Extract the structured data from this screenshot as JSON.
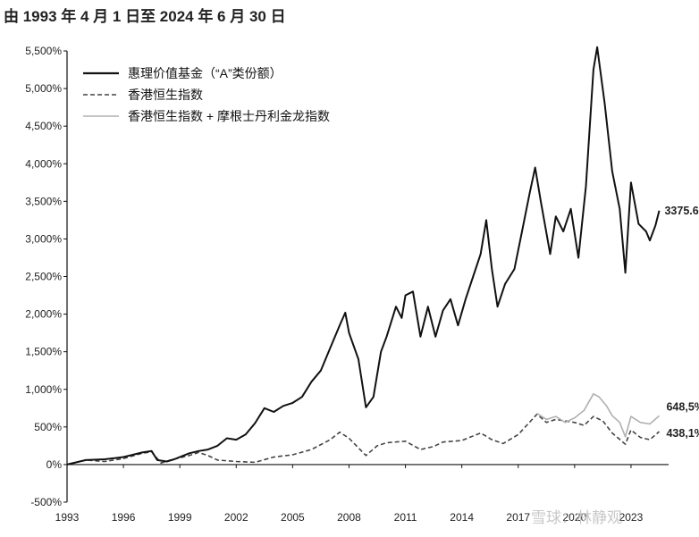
{
  "title": "由 1993 年 4 月 1 日至 2024 年 6 月 30 日",
  "watermark": "雪球：林静观",
  "chart_data": {
    "type": "line",
    "x_ticks": [
      "1993",
      "1996",
      "1999",
      "2002",
      "2005",
      "2008",
      "2011",
      "2014",
      "2017",
      "2020",
      "2023"
    ],
    "y_ticks": [
      "5,500%",
      "5,000%",
      "4,500%",
      "4,000%",
      "3,500%",
      "3,000%",
      "2,500%",
      "2,000%",
      "1,500%",
      "1,000%",
      "500%",
      "0%",
      "-500%"
    ],
    "ylim": [
      -500,
      5500
    ],
    "xlim": [
      1993,
      2025
    ],
    "grid": false,
    "legend_position": "top-left",
    "series": [
      {
        "name": "惠理价值基金（“A”类份额）",
        "color": "#111111",
        "style": "solid",
        "end_label": "3375.6%",
        "points": [
          [
            1993.0,
            0
          ],
          [
            1994.0,
            60
          ],
          [
            1995.0,
            70
          ],
          [
            1996.0,
            100
          ],
          [
            1997.0,
            160
          ],
          [
            1997.5,
            180
          ],
          [
            1997.8,
            60
          ],
          [
            1998.3,
            40
          ],
          [
            1998.7,
            70
          ],
          [
            1999.5,
            150
          ],
          [
            2000.0,
            180
          ],
          [
            2000.5,
            200
          ],
          [
            2001.0,
            250
          ],
          [
            2001.5,
            350
          ],
          [
            2002.0,
            330
          ],
          [
            2002.5,
            400
          ],
          [
            2003.0,
            550
          ],
          [
            2003.5,
            750
          ],
          [
            2004.0,
            700
          ],
          [
            2004.5,
            780
          ],
          [
            2005.0,
            820
          ],
          [
            2005.5,
            900
          ],
          [
            2006.0,
            1100
          ],
          [
            2006.5,
            1250
          ],
          [
            2007.0,
            1550
          ],
          [
            2007.5,
            1850
          ],
          [
            2007.8,
            2020
          ],
          [
            2008.0,
            1750
          ],
          [
            2008.5,
            1400
          ],
          [
            2008.9,
            760
          ],
          [
            2009.3,
            900
          ],
          [
            2009.7,
            1500
          ],
          [
            2010.0,
            1700
          ],
          [
            2010.5,
            2100
          ],
          [
            2010.8,
            1950
          ],
          [
            2011.0,
            2250
          ],
          [
            2011.4,
            2300
          ],
          [
            2011.8,
            1700
          ],
          [
            2012.2,
            2100
          ],
          [
            2012.6,
            1700
          ],
          [
            2013.0,
            2050
          ],
          [
            2013.4,
            2200
          ],
          [
            2013.8,
            1850
          ],
          [
            2014.2,
            2200
          ],
          [
            2014.6,
            2500
          ],
          [
            2015.0,
            2800
          ],
          [
            2015.3,
            3250
          ],
          [
            2015.6,
            2600
          ],
          [
            2015.9,
            2100
          ],
          [
            2016.3,
            2400
          ],
          [
            2016.8,
            2600
          ],
          [
            2017.2,
            3100
          ],
          [
            2017.6,
            3600
          ],
          [
            2017.9,
            3950
          ],
          [
            2018.2,
            3500
          ],
          [
            2018.7,
            2800
          ],
          [
            2019.0,
            3300
          ],
          [
            2019.4,
            3100
          ],
          [
            2019.8,
            3400
          ],
          [
            2020.2,
            2750
          ],
          [
            2020.6,
            3700
          ],
          [
            2021.0,
            5250
          ],
          [
            2021.2,
            5550
          ],
          [
            2021.6,
            4800
          ],
          [
            2022.0,
            3900
          ],
          [
            2022.4,
            3400
          ],
          [
            2022.7,
            2550
          ],
          [
            2023.0,
            3750
          ],
          [
            2023.4,
            3200
          ],
          [
            2023.8,
            3100
          ],
          [
            2024.0,
            2980
          ],
          [
            2024.3,
            3180
          ],
          [
            2024.5,
            3375.6
          ]
        ]
      },
      {
        "name": "香港恒生指数",
        "color": "#444444",
        "style": "dashed",
        "end_label": "438,1%",
        "points": [
          [
            1993.0,
            0
          ],
          [
            1994.0,
            60
          ],
          [
            1995.0,
            40
          ],
          [
            1996.0,
            80
          ],
          [
            1997.0,
            150
          ],
          [
            1997.5,
            170
          ],
          [
            1998.0,
            20
          ],
          [
            1998.5,
            60
          ],
          [
            1999.5,
            120
          ],
          [
            2000.0,
            160
          ],
          [
            2000.5,
            120
          ],
          [
            2001.0,
            60
          ],
          [
            2002.0,
            40
          ],
          [
            2003.0,
            30
          ],
          [
            2004.0,
            100
          ],
          [
            2005.0,
            130
          ],
          [
            2006.0,
            200
          ],
          [
            2007.0,
            330
          ],
          [
            2007.5,
            430
          ],
          [
            2008.0,
            350
          ],
          [
            2008.9,
            120
          ],
          [
            2009.5,
            250
          ],
          [
            2010.0,
            290
          ],
          [
            2011.0,
            310
          ],
          [
            2011.8,
            200
          ],
          [
            2012.5,
            240
          ],
          [
            2013.0,
            300
          ],
          [
            2014.0,
            320
          ],
          [
            2015.0,
            420
          ],
          [
            2015.6,
            330
          ],
          [
            2016.2,
            280
          ],
          [
            2017.0,
            400
          ],
          [
            2018.0,
            670
          ],
          [
            2018.5,
            560
          ],
          [
            2019.0,
            600
          ],
          [
            2020.0,
            560
          ],
          [
            2020.5,
            520
          ],
          [
            2021.0,
            640
          ],
          [
            2021.5,
            580
          ],
          [
            2022.0,
            420
          ],
          [
            2022.7,
            270
          ],
          [
            2023.0,
            460
          ],
          [
            2023.5,
            360
          ],
          [
            2024.0,
            330
          ],
          [
            2024.5,
            438.1
          ]
        ]
      },
      {
        "name": "香港恒生指数 + 摩根士丹利金龙指数",
        "color": "#b0b0b0",
        "style": "solid",
        "end_label": "648,5%",
        "points": [
          [
            2018.0,
            680
          ],
          [
            2018.5,
            600
          ],
          [
            2019.0,
            640
          ],
          [
            2019.5,
            560
          ],
          [
            2020.0,
            620
          ],
          [
            2020.5,
            720
          ],
          [
            2021.0,
            940
          ],
          [
            2021.3,
            900
          ],
          [
            2021.7,
            780
          ],
          [
            2022.0,
            650
          ],
          [
            2022.4,
            560
          ],
          [
            2022.7,
            370
          ],
          [
            2023.0,
            640
          ],
          [
            2023.5,
            560
          ],
          [
            2024.0,
            540
          ],
          [
            2024.5,
            648.5
          ]
        ]
      }
    ]
  }
}
